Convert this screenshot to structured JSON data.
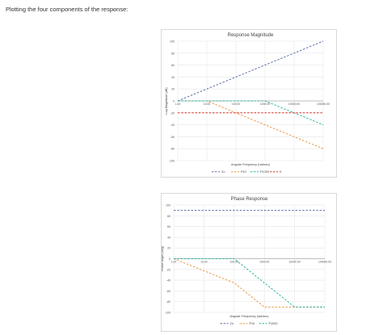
{
  "intro": "Plotting the four components of the response:",
  "chart_data": [
    {
      "type": "line",
      "title": "Response Magnitude",
      "xlabel": "Angular Frequency (rad/sec)",
      "ylabel": "Log Magnitude (dB)",
      "x_scale": "log",
      "xlim": [
        1,
        100000
      ],
      "ylim": [
        -100,
        100
      ],
      "y_ticks": [
        -100,
        -80,
        -60,
        -40,
        -20,
        0,
        20,
        40,
        60,
        80,
        100
      ],
      "x_tick_labels": [
        "1.00",
        "10.00",
        "100.00",
        "1000.00",
        "10000.00",
        "100000.00"
      ],
      "grid": true,
      "legend": "bottom",
      "series": [
        {
          "name": "Zo",
          "color": "#5b6fa8",
          "x": [
            1,
            100000
          ],
          "y": [
            0,
            100
          ]
        },
        {
          "name": "P10",
          "color": "#e89a4a",
          "x": [
            1,
            10,
            100000
          ],
          "y": [
            0,
            0,
            -80
          ]
        },
        {
          "name": "P1000",
          "color": "#2bb5a0",
          "x": [
            1,
            1000,
            100000
          ],
          "y": [
            0,
            0,
            -40
          ]
        },
        {
          "name": "K",
          "color": "#d9352b",
          "x": [
            1,
            100000
          ],
          "y": [
            -20,
            -20
          ]
        }
      ]
    },
    {
      "type": "line",
      "title": "Phase Response",
      "xlabel": "Angular Frequency (rad/sec)",
      "ylabel": "Phase Angle (deg)",
      "x_scale": "log",
      "xlim": [
        1,
        100000
      ],
      "ylim": [
        -100,
        100
      ],
      "y_ticks": [
        -100,
        -80,
        -60,
        -40,
        -20,
        0,
        20,
        40,
        60,
        80,
        100
      ],
      "x_tick_labels": [
        "1.00",
        "10.00",
        "100.00",
        "1000.00",
        "10000.00",
        "100000.00"
      ],
      "grid": true,
      "legend": "bottom",
      "series": [
        {
          "name": "Zo",
          "color": "#5b6fa8",
          "x": [
            1,
            100000
          ],
          "y": [
            90,
            90
          ]
        },
        {
          "name": "P10",
          "color": "#e89a4a",
          "x": [
            1,
            100,
            1000,
            100000
          ],
          "y": [
            0,
            -45,
            -90,
            -90
          ]
        },
        {
          "name": "P1000",
          "color": "#2bb5a0",
          "x": [
            1,
            100,
            10000,
            100000
          ],
          "y": [
            0,
            0,
            -90,
            -90
          ]
        }
      ]
    }
  ]
}
